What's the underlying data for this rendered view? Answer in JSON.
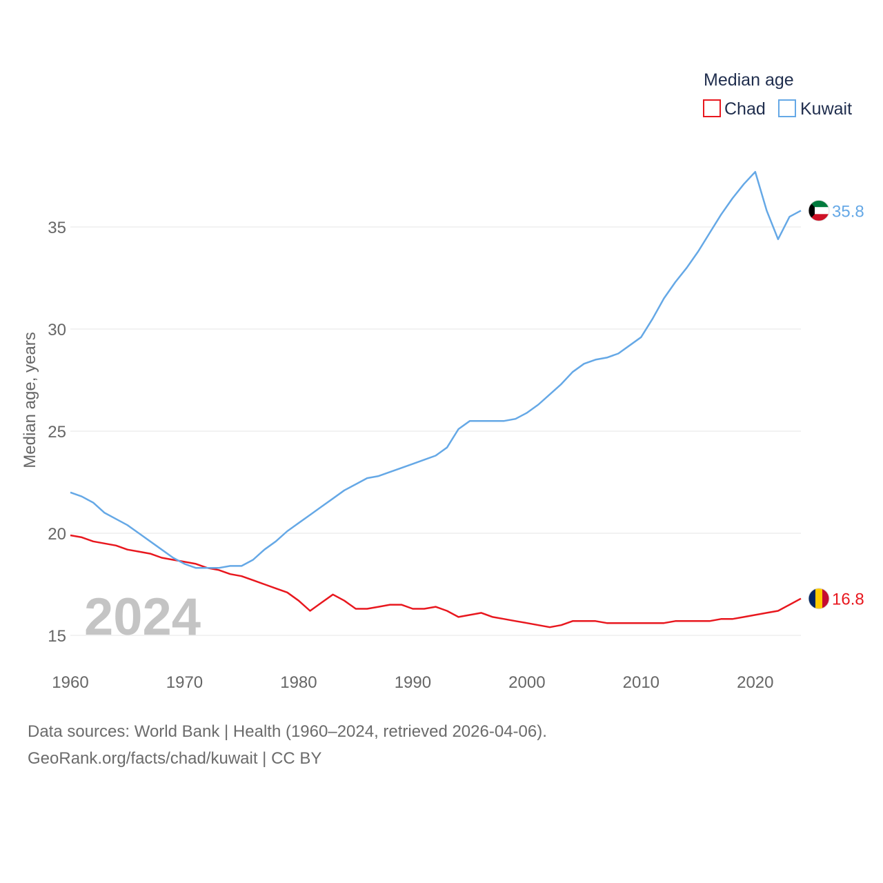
{
  "chart_data": {
    "type": "line",
    "ylabel": "Median age, years",
    "xlabel": "",
    "xlim": [
      1960,
      2024
    ],
    "ylim": [
      13.5,
      39
    ],
    "x_ticks": [
      1960,
      1970,
      1980,
      1990,
      2000,
      2010,
      2020
    ],
    "y_ticks": [
      15,
      20,
      25,
      30,
      35
    ],
    "legend_title": "Median age",
    "legend_position": "top-right",
    "year_label": "2024",
    "x": [
      1960,
      1961,
      1962,
      1963,
      1964,
      1965,
      1966,
      1967,
      1968,
      1969,
      1970,
      1971,
      1972,
      1973,
      1974,
      1975,
      1976,
      1977,
      1978,
      1979,
      1980,
      1981,
      1982,
      1983,
      1984,
      1985,
      1986,
      1987,
      1988,
      1989,
      1990,
      1991,
      1992,
      1993,
      1994,
      1995,
      1996,
      1997,
      1998,
      1999,
      2000,
      2001,
      2002,
      2003,
      2004,
      2005,
      2006,
      2007,
      2008,
      2009,
      2010,
      2011,
      2012,
      2013,
      2014,
      2015,
      2016,
      2017,
      2018,
      2019,
      2020,
      2021,
      2022,
      2023,
      2024
    ],
    "series": [
      {
        "name": "Chad",
        "color": "#e8171e",
        "end_label": "16.8",
        "flag": "chad-flag",
        "values": [
          19.9,
          19.8,
          19.6,
          19.5,
          19.4,
          19.2,
          19.1,
          19.0,
          18.8,
          18.7,
          18.6,
          18.5,
          18.3,
          18.2,
          18.0,
          17.9,
          17.7,
          17.5,
          17.3,
          17.1,
          16.7,
          16.2,
          16.6,
          17.0,
          16.7,
          16.3,
          16.3,
          16.4,
          16.5,
          16.5,
          16.3,
          16.3,
          16.4,
          16.2,
          15.9,
          16.0,
          16.1,
          15.9,
          15.8,
          15.7,
          15.6,
          15.5,
          15.4,
          15.5,
          15.7,
          15.7,
          15.7,
          15.6,
          15.6,
          15.6,
          15.6,
          15.6,
          15.6,
          15.7,
          15.7,
          15.7,
          15.7,
          15.8,
          15.8,
          15.9,
          16.0,
          16.1,
          16.2,
          16.5,
          16.8
        ]
      },
      {
        "name": "Kuwait",
        "color": "#65a8e6",
        "end_label": "35.8",
        "flag": "kuwait-flag",
        "values": [
          22.0,
          21.8,
          21.5,
          21.0,
          20.7,
          20.4,
          20.0,
          19.6,
          19.2,
          18.8,
          18.5,
          18.3,
          18.3,
          18.3,
          18.4,
          18.4,
          18.7,
          19.2,
          19.6,
          20.1,
          20.5,
          20.9,
          21.3,
          21.7,
          22.1,
          22.4,
          22.7,
          22.8,
          23.0,
          23.2,
          23.4,
          23.6,
          23.8,
          24.2,
          25.1,
          25.5,
          25.5,
          25.5,
          25.5,
          25.6,
          25.9,
          26.3,
          26.8,
          27.3,
          27.9,
          28.3,
          28.5,
          28.6,
          28.8,
          29.2,
          29.6,
          30.5,
          31.5,
          32.3,
          33.0,
          33.8,
          34.7,
          35.6,
          36.4,
          37.1,
          37.7,
          35.8,
          34.4,
          35.5,
          35.8
        ]
      }
    ]
  },
  "footer": {
    "sources": "Data sources: World Bank | Health (1960–2024, retrieved 2026-04-06).",
    "credit": "GeoRank.org/facts/chad/kuwait | CC BY"
  }
}
